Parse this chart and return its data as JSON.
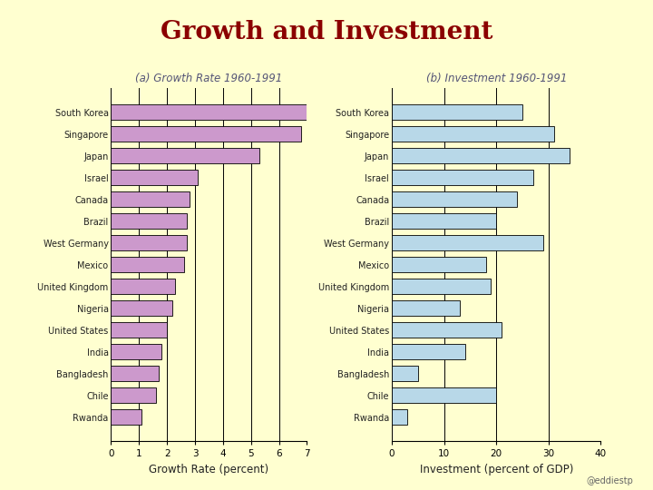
{
  "title": "Growth and Investment",
  "title_color": "#8B0000",
  "background_color": "#FFFFD0",
  "subtitle_a": "(a) Growth Rate 1960-1991",
  "subtitle_b": "(b) Investment 1960-1991",
  "countries": [
    "South Korea",
    "Singapore",
    "Japan",
    "Israel",
    "Canada",
    "Brazil",
    "West Germany",
    "Mexico",
    "United Kingdom",
    "Nigeria",
    "United States",
    "India",
    "Bangladesh",
    "Chile",
    "Rwanda"
  ],
  "growth_values": [
    7.1,
    6.8,
    5.3,
    3.1,
    2.8,
    2.7,
    2.7,
    2.6,
    2.3,
    2.2,
    2.0,
    1.8,
    1.7,
    1.6,
    1.1
  ],
  "investment_values": [
    25,
    31,
    34,
    27,
    24,
    20,
    29,
    18,
    19,
    13,
    21,
    14,
    5,
    20,
    3
  ],
  "bar_color_a": "#CC99CC",
  "bar_color_b": "#B8D8E8",
  "bar_edge_color": "#000000",
  "xlabel_a": "Growth Rate (percent)",
  "xlabel_b": "Investment (percent of GDP)",
  "xlim_a": [
    0,
    7
  ],
  "xlim_b": [
    0,
    40
  ],
  "xticks_a": [
    0,
    1,
    2,
    3,
    4,
    5,
    6,
    7
  ],
  "xticks_b": [
    0,
    10,
    20,
    30,
    40
  ],
  "subtitle_color": "#555577",
  "watermark": "@eddiestp",
  "figsize": [
    7.2,
    5.4
  ],
  "dpi": 100
}
